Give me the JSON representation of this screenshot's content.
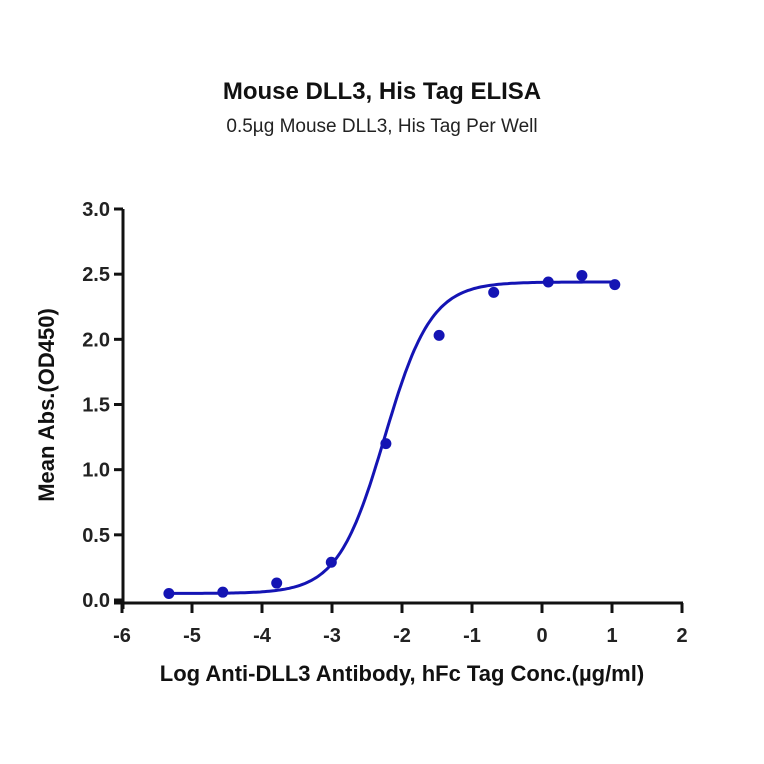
{
  "chart_data": {
    "type": "scatter",
    "title": "Mouse DLL3, His Tag ELISA",
    "subtitle": "0.5µg Mouse DLL3, His Tag Per Well",
    "xlabel": "Log Anti-DLL3 Antibody, hFc Tag Conc.(µg/ml)",
    "ylabel": "Mean Abs.(OD450)",
    "xlim": [
      -6,
      2
    ],
    "ylim": [
      0,
      3.0
    ],
    "x_ticks": [
      "-6",
      "-5",
      "-4",
      "-3",
      "-2",
      "-1",
      "0",
      "1",
      "2"
    ],
    "y_ticks": [
      "0.0",
      "0.5",
      "1.0",
      "1.5",
      "2.0",
      "2.5",
      "3.0"
    ],
    "grid": false,
    "legend": null,
    "series": [
      {
        "name": "Mouse DLL3, His Tag",
        "color": "#1414b4",
        "marker": "circle",
        "fit": "4PL sigmoidal",
        "x": [
          -5.33,
          -4.56,
          -3.79,
          -3.01,
          -2.23,
          -1.47,
          -0.69,
          0.09,
          0.57,
          1.04
        ],
        "values": [
          0.05,
          0.06,
          0.13,
          0.29,
          1.2,
          2.03,
          2.36,
          2.44,
          2.49,
          2.42
        ]
      }
    ],
    "fit_params": {
      "bottom": 0.05,
      "top": 2.44,
      "log_ec50": -2.25,
      "hill": 1.3
    }
  }
}
